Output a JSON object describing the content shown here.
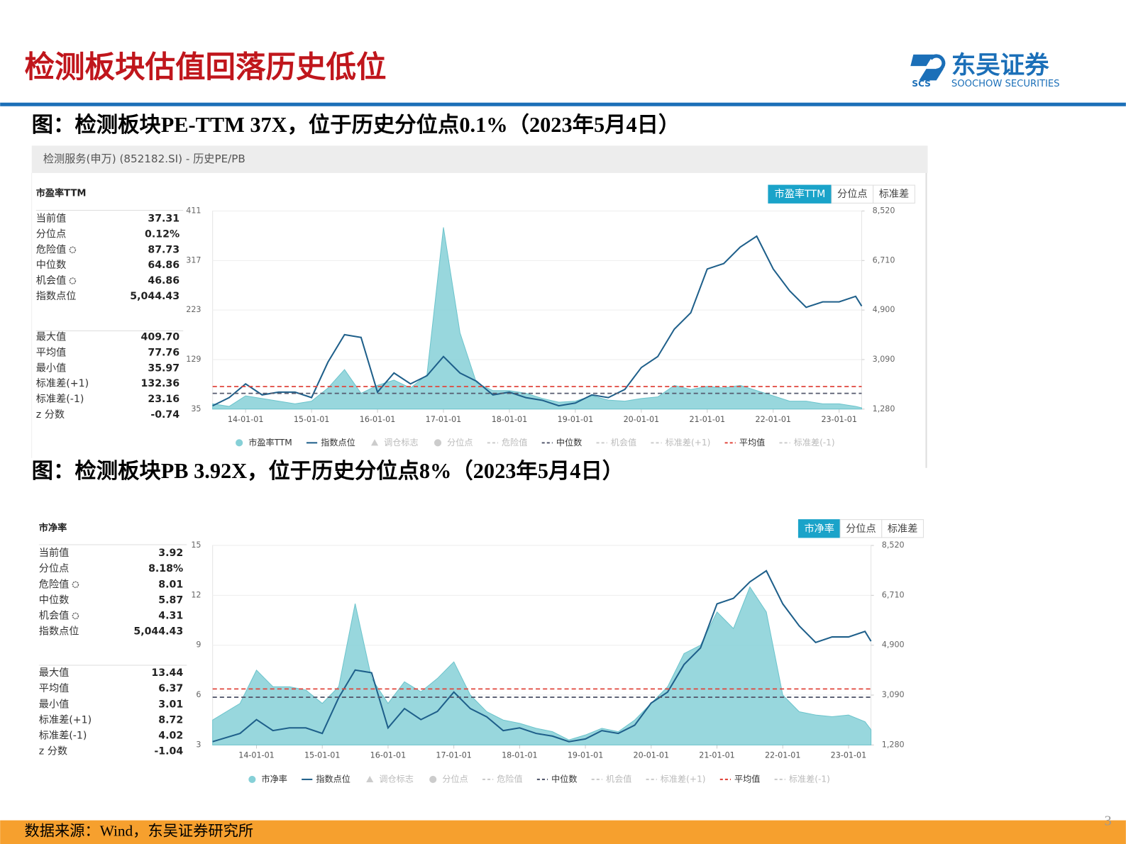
{
  "header": {
    "title": "检测板块估值回落历史低位",
    "logo_name": "东吴证券",
    "logo_en": "SOOCHOW SECURITIES",
    "logo_abbr": "SCS"
  },
  "captions": [
    "图：检测板块PE-TTM 37X，位于历史分位点0.1%（2023年5月4日）",
    "图：检测板块PB 3.92X，位于历史分位点8%（2023年5月4日）"
  ],
  "panel_title": "检测服务(申万) (852182.SI) - 历史PE/PB",
  "chart_data": [
    {
      "type": "area-line",
      "title": "市盈率TTM",
      "buttons": [
        "市盈率TTM",
        "分位点",
        "标准差"
      ],
      "stats": [
        [
          {
            "label": "当前值",
            "value": "37.31"
          },
          {
            "label": "分位点",
            "value": "0.12%"
          },
          {
            "label": "危险值",
            "value": "87.73",
            "icon": true
          },
          {
            "label": "中位数",
            "value": "64.86"
          },
          {
            "label": "机会值",
            "value": "46.86",
            "icon": true
          },
          {
            "label": "指数点位",
            "value": "5,044.43"
          }
        ],
        [
          {
            "label": "最大值",
            "value": "409.70"
          },
          {
            "label": "平均值",
            "value": "77.76"
          },
          {
            "label": "最小值",
            "value": "35.97"
          },
          {
            "label": "标准差(+1)",
            "value": "132.36"
          },
          {
            "label": "标准差(-1)",
            "value": "23.16"
          },
          {
            "label": "z 分数",
            "value": "-0.74"
          }
        ]
      ],
      "x": [
        "13-07-01",
        "13-10-01",
        "14-01-01",
        "14-04-01",
        "14-07-01",
        "14-10-01",
        "15-01-01",
        "15-04-01",
        "15-07-01",
        "15-10-01",
        "16-01-01",
        "16-04-01",
        "16-07-01",
        "16-10-01",
        "17-01-01",
        "17-04-01",
        "17-07-01",
        "17-10-01",
        "18-01-01",
        "18-04-01",
        "18-07-01",
        "18-10-01",
        "19-01-01",
        "19-04-01",
        "19-07-01",
        "19-10-01",
        "20-01-01",
        "20-04-01",
        "20-07-01",
        "20-10-01",
        "21-01-01",
        "21-04-01",
        "21-07-01",
        "21-10-01",
        "22-01-01",
        "22-04-01",
        "22-07-01",
        "22-10-01",
        "23-01-01",
        "23-04-01",
        "23-05-04"
      ],
      "series": [
        {
          "name": "市盈率TTM",
          "color": "#86d0d7",
          "style": "area",
          "values": [
            45,
            40,
            60,
            55,
            50,
            45,
            50,
            75,
            110,
            65,
            80,
            90,
            75,
            100,
            380,
            180,
            85,
            70,
            70,
            65,
            55,
            48,
            50,
            60,
            52,
            50,
            55,
            58,
            80,
            72,
            78,
            75,
            80,
            70,
            60,
            50,
            50,
            45,
            45,
            40,
            37.31
          ]
        },
        {
          "name": "指数点位",
          "color": "#1e5f8a",
          "style": "line",
          "axis": "y2",
          "values": [
            1400,
            1700,
            2200,
            1800,
            1900,
            1900,
            1700,
            3000,
            4000,
            3900,
            1900,
            2600,
            2200,
            2500,
            3200,
            2600,
            2300,
            1800,
            1900,
            1700,
            1600,
            1400,
            1500,
            1800,
            1700,
            2000,
            2800,
            3200,
            4200,
            4800,
            6400,
            6600,
            7200,
            7600,
            6400,
            5600,
            5000,
            5200,
            5200,
            5400,
            5044.43
          ]
        }
      ],
      "reference_lines": [
        {
          "name": "中位数",
          "value": 64.86,
          "color": "#555a6e"
        },
        {
          "name": "平均值",
          "value": 77.76,
          "color": "#e0463c"
        }
      ],
      "inactive_legend": [
        "调仓标志",
        "分位点",
        "危险值",
        "机会值",
        "标准差(+1)",
        "标准差(-1)"
      ],
      "xlim": [
        "13-07-01",
        "23-05-04"
      ],
      "xticks": [
        "14-01-01",
        "15-01-01",
        "16-01-01",
        "17-01-01",
        "18-01-01",
        "19-01-01",
        "20-01-01",
        "21-01-01",
        "22-01-01",
        "23-01-01"
      ],
      "ylim": [
        35,
        411
      ],
      "yticks": [
        35,
        129,
        223,
        317,
        411
      ],
      "y2lim": [
        1280,
        8520
      ],
      "y2ticks": [
        {
          "value": 1280,
          "label": "1,280"
        },
        {
          "value": 3090,
          "label": "3,090"
        },
        {
          "value": 4900,
          "label": "4,900"
        },
        {
          "value": 6710,
          "label": "6,710"
        },
        {
          "value": 8520,
          "label": "8,520"
        }
      ]
    },
    {
      "type": "area-line",
      "title": "市净率",
      "buttons": [
        "市净率",
        "分位点",
        "标准差"
      ],
      "stats": [
        [
          {
            "label": "当前值",
            "value": "3.92"
          },
          {
            "label": "分位点",
            "value": "8.18%"
          },
          {
            "label": "危险值",
            "value": "8.01",
            "icon": true
          },
          {
            "label": "中位数",
            "value": "5.87"
          },
          {
            "label": "机会值",
            "value": "4.31",
            "icon": true
          },
          {
            "label": "指数点位",
            "value": "5,044.43"
          }
        ],
        [
          {
            "label": "最大值",
            "value": "13.44"
          },
          {
            "label": "平均值",
            "value": "6.37"
          },
          {
            "label": "最小值",
            "value": "3.01"
          },
          {
            "label": "标准差(+1)",
            "value": "8.72"
          },
          {
            "label": "标准差(-1)",
            "value": "4.02"
          },
          {
            "label": "z 分数",
            "value": "-1.04"
          }
        ]
      ],
      "x": [
        "13-05-01",
        "13-10-01",
        "14-01-01",
        "14-04-01",
        "14-07-01",
        "14-10-01",
        "15-01-01",
        "15-04-01",
        "15-07-01",
        "15-10-01",
        "16-01-01",
        "16-04-01",
        "16-07-01",
        "16-10-01",
        "17-01-01",
        "17-04-01",
        "17-07-01",
        "17-10-01",
        "18-01-01",
        "18-04-01",
        "18-07-01",
        "18-10-01",
        "19-01-01",
        "19-04-01",
        "19-07-01",
        "19-10-01",
        "20-01-01",
        "20-04-01",
        "20-07-01",
        "20-10-01",
        "21-01-01",
        "21-04-01",
        "21-07-01",
        "21-10-01",
        "22-01-01",
        "22-04-01",
        "22-07-01",
        "22-10-01",
        "23-01-01",
        "23-04-01",
        "23-05-04"
      ],
      "series": [
        {
          "name": "市净率",
          "color": "#86d0d7",
          "style": "area",
          "values": [
            4.5,
            5.5,
            7.5,
            6.5,
            6.5,
            6.3,
            5.5,
            6.5,
            11.5,
            7,
            5.5,
            6.8,
            6.2,
            7,
            8,
            6,
            5,
            4.5,
            4.3,
            4,
            3.8,
            3.3,
            3.6,
            4,
            3.8,
            4.5,
            5.5,
            6.5,
            8.5,
            9,
            11,
            10,
            12.5,
            11,
            6,
            5,
            4.8,
            4.7,
            4.8,
            4.4,
            3.92
          ]
        },
        {
          "name": "指数点位",
          "color": "#1e5f8a",
          "style": "line",
          "axis": "y2",
          "values": [
            1400,
            1700,
            2200,
            1800,
            1900,
            1900,
            1700,
            3000,
            4000,
            3900,
            1900,
            2600,
            2200,
            2500,
            3200,
            2600,
            2300,
            1800,
            1900,
            1700,
            1600,
            1400,
            1500,
            1800,
            1700,
            2000,
            2800,
            3200,
            4200,
            4800,
            6400,
            6600,
            7200,
            7600,
            6400,
            5600,
            5000,
            5200,
            5200,
            5400,
            5044.43
          ]
        }
      ],
      "reference_lines": [
        {
          "name": "中位数",
          "value": 5.87,
          "color": "#555a6e"
        },
        {
          "name": "平均值",
          "value": 6.37,
          "color": "#e0463c"
        }
      ],
      "inactive_legend": [
        "调仓标志",
        "分位点",
        "危险值",
        "机会值",
        "标准差(+1)",
        "标准差(-1)"
      ],
      "xlim": [
        "13-05-01",
        "23-05-04"
      ],
      "xticks": [
        "14-01-01",
        "15-01-01",
        "16-01-01",
        "17-01-01",
        "18-01-01",
        "19-01-01",
        "20-01-01",
        "21-01-01",
        "22-01-01",
        "23-01-01"
      ],
      "ylim": [
        3,
        15
      ],
      "yticks": [
        3,
        6,
        9,
        12,
        15
      ],
      "y2lim": [
        1280,
        8520
      ],
      "y2ticks": [
        {
          "value": 1280,
          "label": "1,280"
        },
        {
          "value": 3090,
          "label": "3,090"
        },
        {
          "value": 4900,
          "label": "4,900"
        },
        {
          "value": 6710,
          "label": "6,710"
        },
        {
          "value": 8520,
          "label": "8,520"
        }
      ]
    }
  ],
  "footer": {
    "source": "数据来源：Wind，东吴证券研究所",
    "page": "3"
  }
}
